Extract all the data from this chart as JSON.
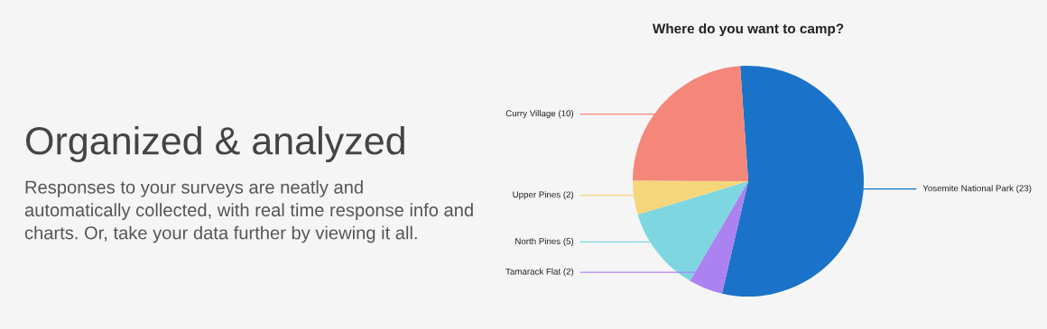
{
  "chart_data": {
    "type": "pie",
    "title": "Where do you want to camp?",
    "categories": [
      "Yosemite National Park (23)",
      "Tamarack Flat (2)",
      "North Pines (5)",
      "Upper Pines (2)",
      "Curry Village (10)"
    ],
    "values": [
      23,
      2,
      5,
      2,
      10
    ],
    "colors": [
      "#1a73c8",
      "#ab82f0",
      "#7dd6e0",
      "#f6d67a",
      "#f4877a"
    ],
    "annotations": [
      "Organized & analyzed",
      "Responses to your surveys are neatly and automatically collected, with real time response info and charts. Or, take your data further by viewing it all."
    ]
  }
}
